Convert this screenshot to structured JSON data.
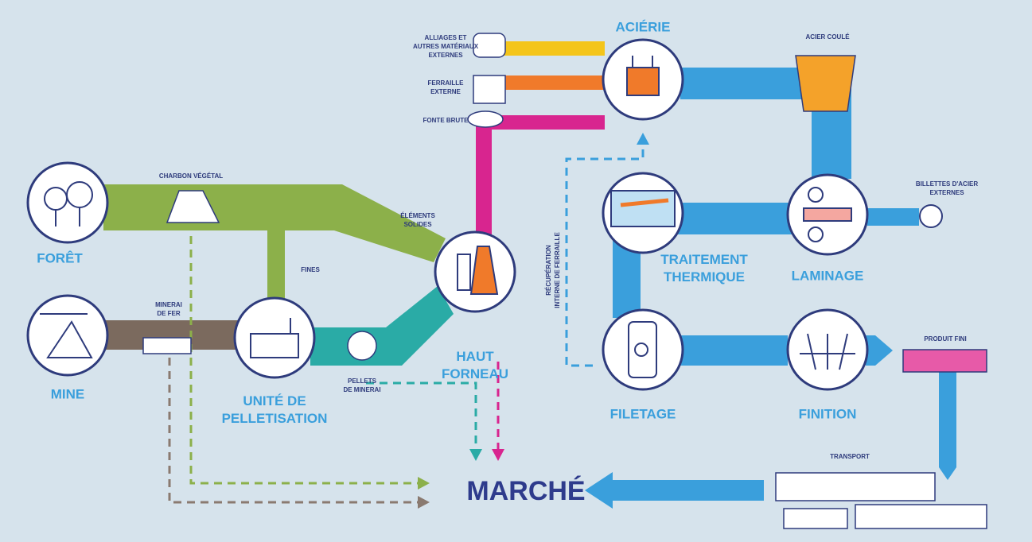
{
  "nodes": [
    {
      "label": "FORÊT"
    },
    {
      "label": "MINE"
    },
    {
      "lines": [
        "UNITÉ DE",
        "PELLETISATION"
      ]
    },
    {
      "lines": [
        "HAUT",
        "FORNEAU"
      ]
    },
    {
      "label": "ACIÉRIE"
    },
    {
      "label": "LAMINAGE"
    },
    {
      "lines": [
        "TRAITEMENT",
        "THERMIQUE"
      ]
    },
    {
      "label": "FILETAGE"
    },
    {
      "label": "FINITION"
    },
    {
      "label": "MARCHÉ"
    }
  ],
  "flow_labels": [
    {
      "lines": [
        "CHARBON VÉGÉTAL"
      ]
    },
    {
      "lines": [
        "FINES"
      ]
    },
    {
      "lines": [
        "ÉLÉMENTS",
        "SOLIDES"
      ]
    },
    {
      "lines": [
        "MINERAI",
        "DE FER"
      ]
    },
    {
      "lines": [
        "PELLETS",
        "DE MINERAI"
      ]
    },
    {
      "lines": [
        "ALLIAGES ET",
        "AUTRES MATÉRIAUX",
        "EXTERNES"
      ]
    },
    {
      "lines": [
        "FERRAILLE",
        "EXTERNE"
      ]
    },
    {
      "lines": [
        "FONTE BRUTE"
      ]
    },
    {
      "lines": [
        "ACIER COULÉ"
      ]
    },
    {
      "lines": [
        "BILLETTES D'ACIER",
        "EXTERNES"
      ]
    },
    {
      "lines": [
        "PRODUIT FINI"
      ]
    },
    {
      "lines": [
        "TRANSPORT"
      ]
    },
    {
      "lines": [
        "RÉCUPÉRATION",
        "INTERNE DE FERRAILLE"
      ]
    }
  ]
}
